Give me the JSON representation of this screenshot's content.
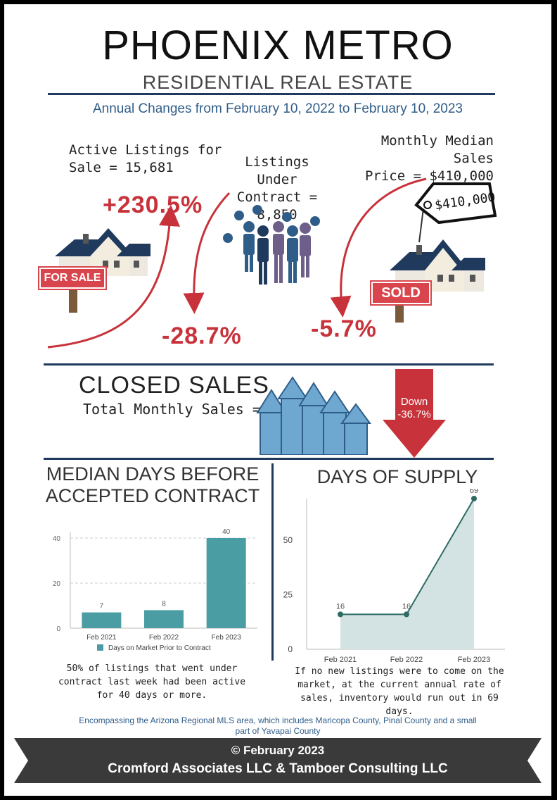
{
  "header": {
    "title": "PHOENIX METRO",
    "subtitle": "RESIDENTIAL REAL ESTATE",
    "annual_changes": "Annual Changes from February 10, 2022 to February 10, 2023"
  },
  "stats": {
    "active_listings": {
      "line1": "Active Listings for",
      "line2": "Sale = 15,681",
      "change": "+230.5%",
      "sign": "FOR SALE"
    },
    "under_contract": {
      "line1": "Listings Under",
      "line2": "Contract = 8,850",
      "change": "-28.7%"
    },
    "median_price": {
      "line1": "Monthly Median Sales",
      "line2": "Price = $410,000",
      "change": "-5.7%",
      "tag": "$410,000",
      "sign": "SOLD"
    }
  },
  "closed_sales": {
    "title": "CLOSED SALES",
    "subtitle": "Total Monthly Sales = 4,705",
    "arrow_line1": "Down",
    "arrow_line2": "-36.7%"
  },
  "chart_data": [
    {
      "type": "bar",
      "title": "MEDIAN DAYS BEFORE ACCEPTED CONTRACT",
      "categories": [
        "Feb 2021",
        "Feb 2022",
        "Feb 2023"
      ],
      "series": [
        {
          "name": "Days on Market Prior to Contract",
          "values": [
            7,
            8,
            40
          ]
        }
      ],
      "yticks": [
        0,
        20,
        40
      ],
      "ylim": [
        0,
        40
      ],
      "grid": true,
      "legend": "bottom",
      "color": "#4a9ea3",
      "note": "50% of listings that went under contract last week had been active for 40 days or more."
    },
    {
      "type": "area",
      "title": "DAYS OF SUPPLY",
      "categories": [
        "Feb 2021",
        "Feb 2022",
        "Feb 2023"
      ],
      "values": [
        16,
        16,
        69
      ],
      "yticks": [
        0,
        25,
        50
      ],
      "ylim": [
        0,
        69
      ],
      "grid": false,
      "line_color": "#2e6b63",
      "fill_color": "#d3e2e2",
      "note": "If no new listings were to come on the market, at the current annual rate of sales, inventory would run out in 69 days."
    }
  ],
  "footer": {
    "note": "Encompassing the Arizona Regional MLS area, which includes Maricopa County, Pinal County and a small part of Yavapai County",
    "copyright": "© February 2023",
    "credit": "Cromford Associates LLC & Tamboer Consulting LLC"
  },
  "colors": {
    "navy": "#1f3a5c",
    "red": "#c8323a",
    "teal": "#4a9ea3",
    "banner": "#3a3a3a"
  }
}
